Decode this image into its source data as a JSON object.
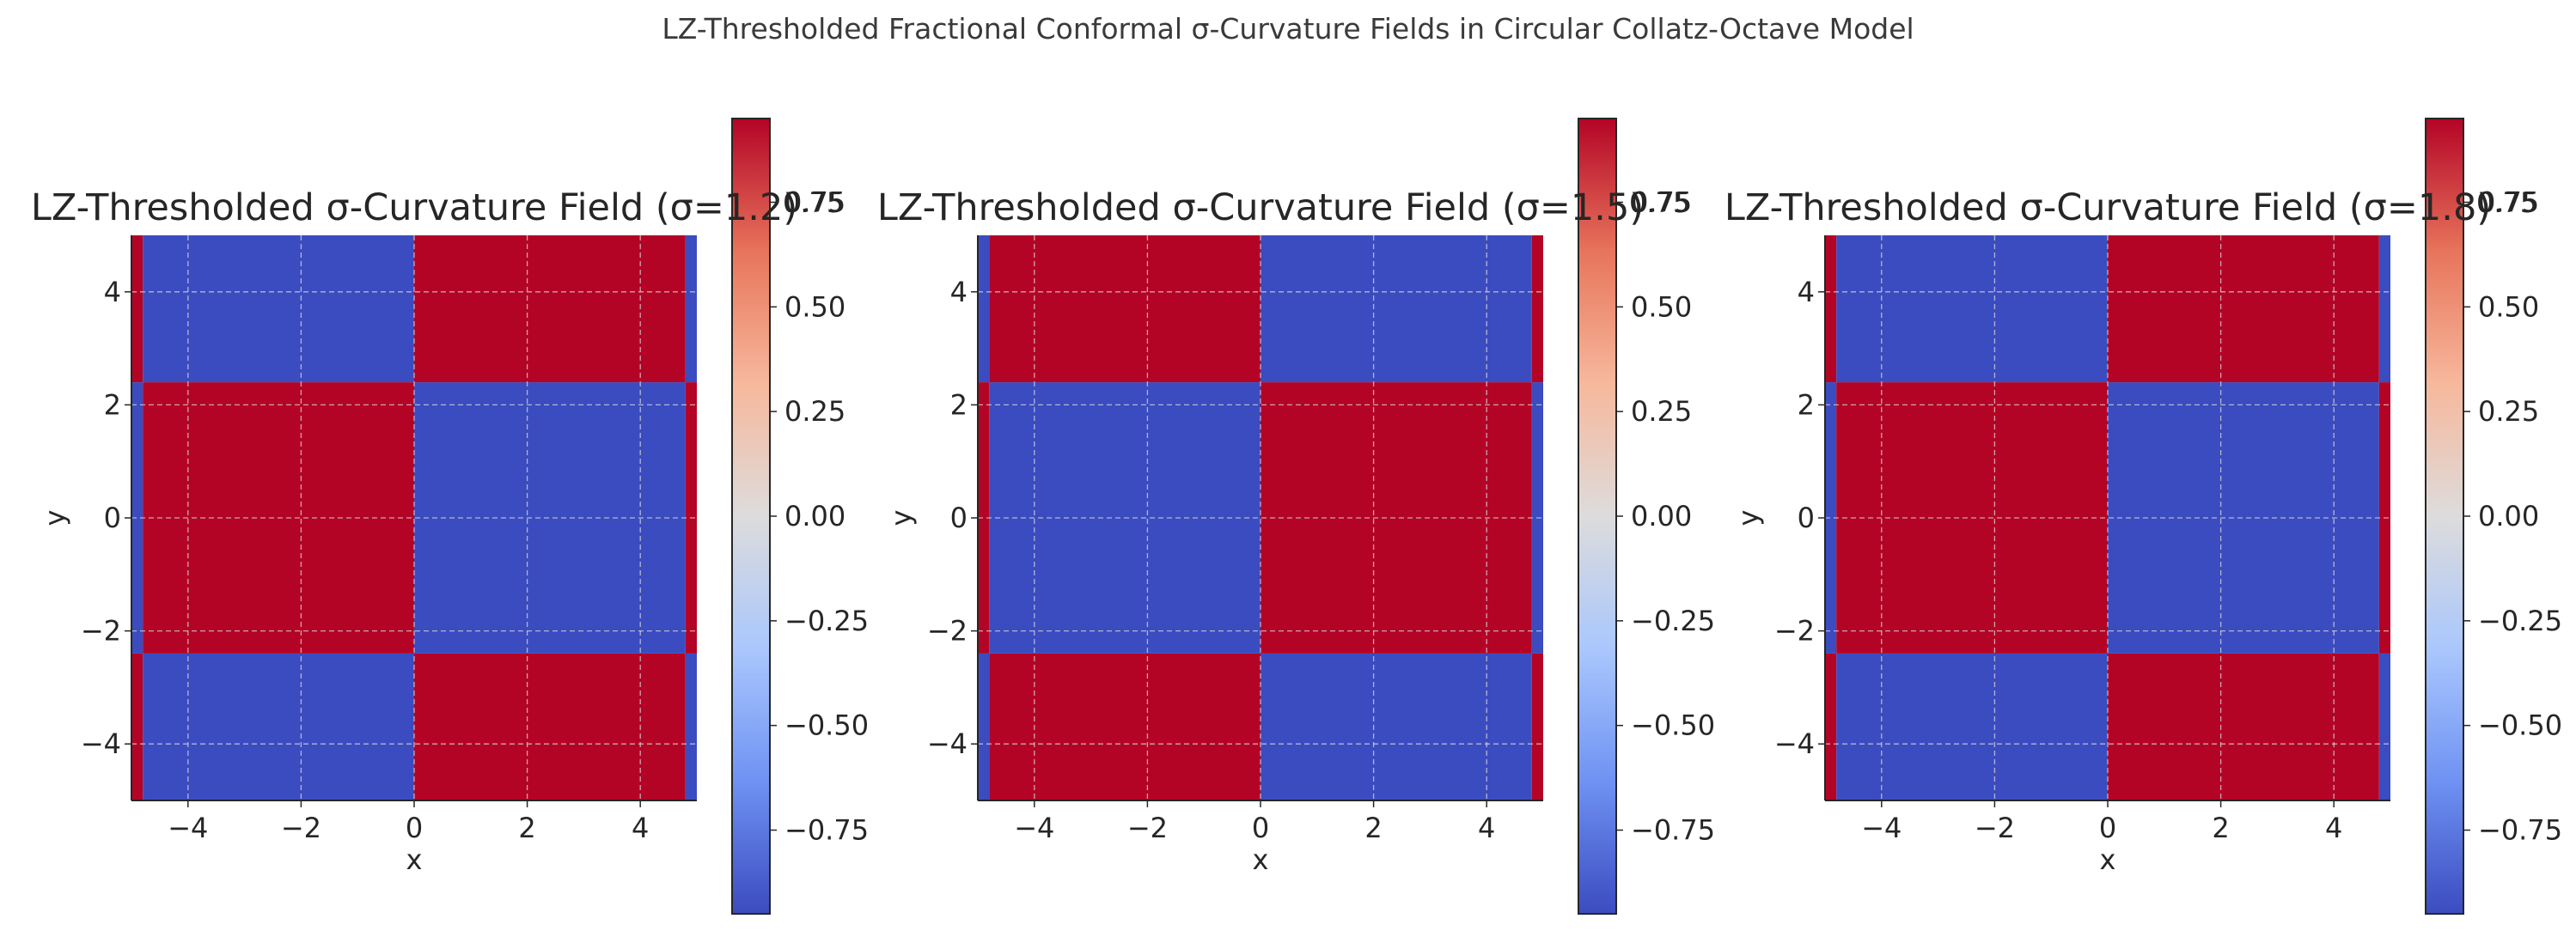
{
  "figure": {
    "suptitle": "LZ-Thresholded Fractional Conformal σ-Curvature Fields in Circular Collatz-Octave Model"
  },
  "colormap": {
    "name": "coolwarm",
    "stops": [
      "#3b4cc0",
      "#6f92f3",
      "#aac7fd",
      "#dddcdc",
      "#f7b89c",
      "#e7745b",
      "#b40426"
    ]
  },
  "chart_data": [
    {
      "type": "heatmap",
      "title": "LZ-Thresholded σ-Curvature Field (σ=1.2)",
      "title_overlap_fragment": "0.75",
      "xlabel": "x",
      "ylabel": "y",
      "xlim": [
        -5,
        5
      ],
      "ylim": [
        -5,
        5
      ],
      "xticks": [
        -4,
        -2,
        0,
        2,
        4
      ],
      "yticks": [
        -4,
        -2,
        0,
        2,
        4
      ],
      "xtick_labels": [
        "−4",
        "−2",
        "0",
        "2",
        "4"
      ],
      "ytick_labels": [
        "−4",
        "−2",
        "0",
        "2",
        "4"
      ],
      "grid": true,
      "x_edges": [
        -5,
        -4.8,
        0,
        4.8,
        5
      ],
      "y_edges": [
        -5,
        -2.4,
        2.4,
        5
      ],
      "values": [
        [
          1,
          -1,
          1,
          -1
        ],
        [
          -1,
          1,
          -1,
          1
        ],
        [
          1,
          -1,
          1,
          -1
        ]
      ],
      "colorbar": {
        "range": [
          -0.95,
          0.95
        ],
        "ticks": [
          -0.75,
          -0.5,
          -0.25,
          0,
          0.25,
          0.5,
          0.75
        ],
        "tick_labels": [
          "−0.75",
          "−0.50",
          "−0.25",
          "0.00",
          "0.25",
          "0.50",
          "0.75"
        ]
      }
    },
    {
      "type": "heatmap",
      "title": "LZ-Thresholded σ-Curvature Field (σ=1.5)",
      "title_overlap_fragment": "0.75",
      "xlabel": "x",
      "ylabel": "y",
      "xlim": [
        -5,
        5
      ],
      "ylim": [
        -5,
        5
      ],
      "xticks": [
        -4,
        -2,
        0,
        2,
        4
      ],
      "yticks": [
        -4,
        -2,
        0,
        2,
        4
      ],
      "xtick_labels": [
        "−4",
        "−2",
        "0",
        "2",
        "4"
      ],
      "ytick_labels": [
        "−4",
        "−2",
        "0",
        "2",
        "4"
      ],
      "grid": true,
      "x_edges": [
        -5,
        -4.8,
        0,
        4.8,
        5
      ],
      "y_edges": [
        -5,
        -2.4,
        2.4,
        5
      ],
      "values": [
        [
          -1,
          1,
          -1,
          1
        ],
        [
          1,
          -1,
          1,
          -1
        ],
        [
          -1,
          1,
          -1,
          1
        ]
      ],
      "colorbar": {
        "range": [
          -0.95,
          0.95
        ],
        "ticks": [
          -0.75,
          -0.5,
          -0.25,
          0,
          0.25,
          0.5,
          0.75
        ],
        "tick_labels": [
          "−0.75",
          "−0.50",
          "−0.25",
          "0.00",
          "0.25",
          "0.50",
          "0.75"
        ]
      }
    },
    {
      "type": "heatmap",
      "title": "LZ-Thresholded σ-Curvature Field (σ=1.8)",
      "title_overlap_fragment": "0.75",
      "xlabel": "x",
      "ylabel": "y",
      "xlim": [
        -5,
        5
      ],
      "ylim": [
        -5,
        5
      ],
      "xticks": [
        -4,
        -2,
        0,
        2,
        4
      ],
      "yticks": [
        -4,
        -2,
        0,
        2,
        4
      ],
      "xtick_labels": [
        "−4",
        "−2",
        "0",
        "2",
        "4"
      ],
      "ytick_labels": [
        "−4",
        "−2",
        "0",
        "2",
        "4"
      ],
      "grid": true,
      "x_edges": [
        -5,
        -4.8,
        0,
        4.8,
        5
      ],
      "y_edges": [
        -5,
        -2.4,
        2.4,
        5
      ],
      "values": [
        [
          1,
          -1,
          1,
          -1
        ],
        [
          -1,
          1,
          -1,
          1
        ],
        [
          1,
          -1,
          1,
          -1
        ]
      ],
      "colorbar": {
        "range": [
          -0.95,
          0.95
        ],
        "ticks": [
          -0.75,
          -0.5,
          -0.25,
          0,
          0.25,
          0.5,
          0.75
        ],
        "tick_labels": [
          "−0.75",
          "−0.50",
          "−0.25",
          "0.00",
          "0.25",
          "0.50",
          "0.75"
        ]
      }
    }
  ]
}
